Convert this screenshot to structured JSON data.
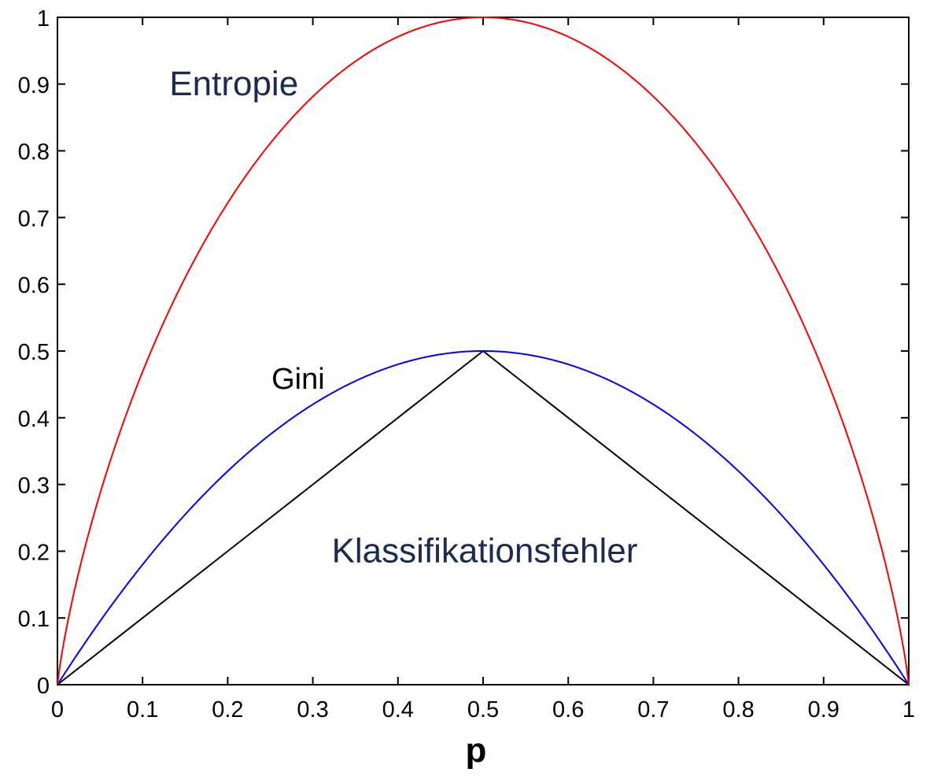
{
  "chart_data": {
    "type": "line",
    "title": "",
    "xlabel": "p",
    "ylabel": "",
    "xlim": [
      0,
      1
    ],
    "ylim": [
      0,
      1
    ],
    "grid": false,
    "x_ticks": [
      "0",
      "0.1",
      "0.2",
      "0.3",
      "0.4",
      "0.5",
      "0.6",
      "0.7",
      "0.8",
      "0.9",
      "1"
    ],
    "y_ticks": [
      "0",
      "0.1",
      "0.2",
      "0.3",
      "0.4",
      "0.5",
      "0.6",
      "0.7",
      "0.8",
      "0.9",
      "1"
    ],
    "x": [
      0,
      0.01,
      0.02,
      0.05,
      0.1,
      0.15,
      0.2,
      0.25,
      0.3,
      0.35,
      0.4,
      0.45,
      0.5,
      0.55,
      0.6,
      0.65,
      0.7,
      0.75,
      0.8,
      0.85,
      0.9,
      0.95,
      0.98,
      0.99,
      1
    ],
    "series": [
      {
        "name": "Entropie",
        "color": "#ff0000",
        "values": [
          0,
          0.081,
          0.141,
          0.286,
          0.469,
          0.61,
          0.722,
          0.811,
          0.881,
          0.934,
          0.971,
          0.993,
          1,
          0.993,
          0.971,
          0.934,
          0.881,
          0.811,
          0.722,
          0.61,
          0.469,
          0.286,
          0.141,
          0.081,
          0
        ]
      },
      {
        "name": "Gini",
        "color": "#0000ff",
        "values": [
          0,
          0.0198,
          0.0392,
          0.095,
          0.18,
          0.255,
          0.32,
          0.375,
          0.42,
          0.455,
          0.48,
          0.495,
          0.5,
          0.495,
          0.48,
          0.455,
          0.42,
          0.375,
          0.32,
          0.255,
          0.18,
          0.095,
          0.0392,
          0.0198,
          0
        ]
      },
      {
        "name": "Klassifikationsfehler",
        "color": "#000000",
        "values": [
          0,
          0.01,
          0.02,
          0.05,
          0.1,
          0.15,
          0.2,
          0.25,
          0.3,
          0.35,
          0.4,
          0.45,
          0.5,
          0.45,
          0.4,
          0.35,
          0.3,
          0.25,
          0.2,
          0.15,
          0.1,
          0.05,
          0.02,
          0.01,
          0
        ]
      }
    ],
    "annotations": [
      {
        "text": "Entropie",
        "x": 0.15,
        "y": 0.9,
        "color": "#1a2a50"
      },
      {
        "text": "Gini",
        "x": 0.27,
        "y": 0.46,
        "color": "#000000"
      },
      {
        "text": "Klassifikationsfehler",
        "x": 0.5,
        "y": 0.2,
        "color": "#1a2a50"
      }
    ]
  }
}
